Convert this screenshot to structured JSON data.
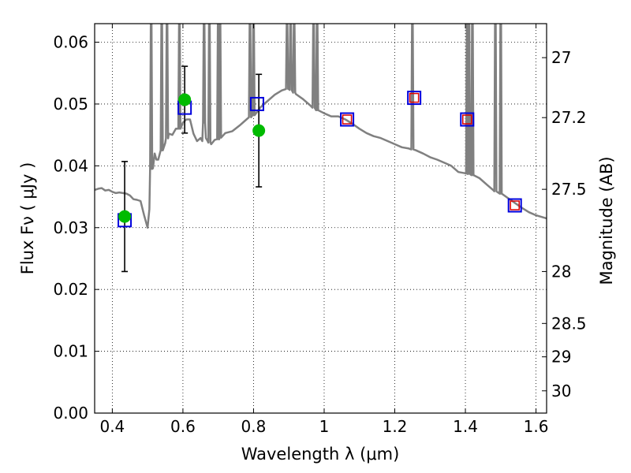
{
  "chart_data": {
    "type": "scatter",
    "title": "",
    "xlabel": "Wavelength  λ (μm)",
    "ylabel": "Flux  Fν  ( μJy )",
    "ylabel_right": "Magnitude (AB)",
    "xlim": [
      0.35,
      1.63
    ],
    "ylim": [
      0.0,
      0.063
    ],
    "grid": true,
    "x_ticks": [
      0.4,
      0.6,
      0.8,
      1.0,
      1.2,
      1.4,
      1.6
    ],
    "x_tick_labels": [
      "0.4",
      "0.6",
      "0.8",
      "1",
      "1.2",
      "1.4",
      "1.6"
    ],
    "y_ticks": [
      0.0,
      0.01,
      0.02,
      0.03,
      0.04,
      0.05,
      0.06
    ],
    "y_tick_labels": [
      "0.00",
      "0.01",
      "0.02",
      "0.03",
      "0.04",
      "0.05",
      "0.06"
    ],
    "right_ticks": [
      {
        "label": "27",
        "flux": 0.0575
      },
      {
        "label": "27.2",
        "flux": 0.0478
      },
      {
        "label": "27.5",
        "flux": 0.0362
      },
      {
        "label": "28",
        "flux": 0.0229
      },
      {
        "label": "28.5",
        "flux": 0.0145
      },
      {
        "label": "29",
        "flux": 0.0091
      },
      {
        "label": "30",
        "flux": 0.0036
      }
    ],
    "series": [
      {
        "name": "model_spectrum",
        "kind": "line",
        "color": "#808080",
        "x": [
          0.35,
          0.36,
          0.37,
          0.38,
          0.39,
          0.4,
          0.41,
          0.42,
          0.43,
          0.44,
          0.45,
          0.46,
          0.47,
          0.48,
          0.49,
          0.5,
          0.505,
          0.51,
          0.515,
          0.52,
          0.525,
          0.53,
          0.54,
          0.55,
          0.56,
          0.57,
          0.58,
          0.59,
          0.6,
          0.61,
          0.62,
          0.63,
          0.64,
          0.65,
          0.655,
          0.66,
          0.665,
          0.67,
          0.68,
          0.69,
          0.7,
          0.72,
          0.74,
          0.76,
          0.78,
          0.8,
          0.82,
          0.84,
          0.86,
          0.88,
          0.9,
          0.92,
          0.94,
          0.96,
          0.98,
          1.0,
          1.02,
          1.04,
          1.06,
          1.08,
          1.1,
          1.12,
          1.14,
          1.16,
          1.18,
          1.2,
          1.22,
          1.24,
          1.26,
          1.28,
          1.3,
          1.32,
          1.34,
          1.36,
          1.38,
          1.4,
          1.42,
          1.44,
          1.46,
          1.48,
          1.5,
          1.52,
          1.54,
          1.56,
          1.58,
          1.6,
          1.63
        ],
        "values": [
          0.0361,
          0.0363,
          0.0364,
          0.036,
          0.0361,
          0.0358,
          0.0356,
          0.0357,
          0.0356,
          0.0355,
          0.0352,
          0.0346,
          0.0345,
          0.0343,
          0.032,
          0.03,
          0.033,
          0.0395,
          0.0396,
          0.042,
          0.041,
          0.041,
          0.0425,
          0.0437,
          0.0452,
          0.045,
          0.046,
          0.046,
          0.047,
          0.0475,
          0.0475,
          0.0452,
          0.044,
          0.0445,
          0.044,
          0.047,
          0.0445,
          0.044,
          0.0435,
          0.0442,
          0.0443,
          0.0453,
          0.0456,
          0.0465,
          0.0475,
          0.0482,
          0.0495,
          0.0505,
          0.0515,
          0.0522,
          0.0525,
          0.0516,
          0.0508,
          0.0498,
          0.049,
          0.0485,
          0.048,
          0.048,
          0.0475,
          0.0468,
          0.046,
          0.0453,
          0.0448,
          0.0445,
          0.044,
          0.0435,
          0.043,
          0.0428,
          0.0425,
          0.042,
          0.0414,
          0.041,
          0.0405,
          0.04,
          0.039,
          0.0388,
          0.0385,
          0.038,
          0.037,
          0.036,
          0.0355,
          0.0348,
          0.034,
          0.0332,
          0.0325,
          0.032,
          0.0315
        ]
      },
      {
        "name": "emission_spikes",
        "kind": "spikes",
        "color": "#808080",
        "x": [
          0.51,
          0.54,
          0.555,
          0.59,
          0.66,
          0.675,
          0.7,
          0.705,
          0.79,
          0.8,
          0.895,
          0.905,
          0.915,
          0.97,
          0.98,
          1.25,
          1.405,
          1.41,
          1.42,
          1.485,
          1.5
        ],
        "values": [
          0.063,
          0.063,
          0.063,
          0.063,
          0.063,
          0.063,
          0.063,
          0.063,
          0.063,
          0.063,
          0.063,
          0.063,
          0.063,
          0.063,
          0.063,
          0.063,
          0.063,
          0.063,
          0.063,
          0.063,
          0.063
        ]
      },
      {
        "name": "observed",
        "kind": "errorbar",
        "color": "#00bb00",
        "x": [
          0.435,
          0.605,
          0.815
        ],
        "values": [
          0.0318,
          0.0507,
          0.0457
        ],
        "err": [
          0.0089,
          0.0054,
          0.0091
        ]
      },
      {
        "name": "model_blue",
        "kind": "square",
        "color": "#0000dd",
        "x": [
          0.435,
          0.605,
          0.81,
          1.065,
          1.255,
          1.405,
          1.54
        ],
        "values": [
          0.0312,
          0.0494,
          0.05,
          0.0475,
          0.051,
          0.0475,
          0.0336
        ]
      },
      {
        "name": "model_red",
        "kind": "square",
        "color": "#dd0000",
        "x": [
          1.065,
          1.255,
          1.405,
          1.54
        ],
        "values": [
          0.0475,
          0.051,
          0.0475,
          0.0336
        ]
      }
    ]
  }
}
